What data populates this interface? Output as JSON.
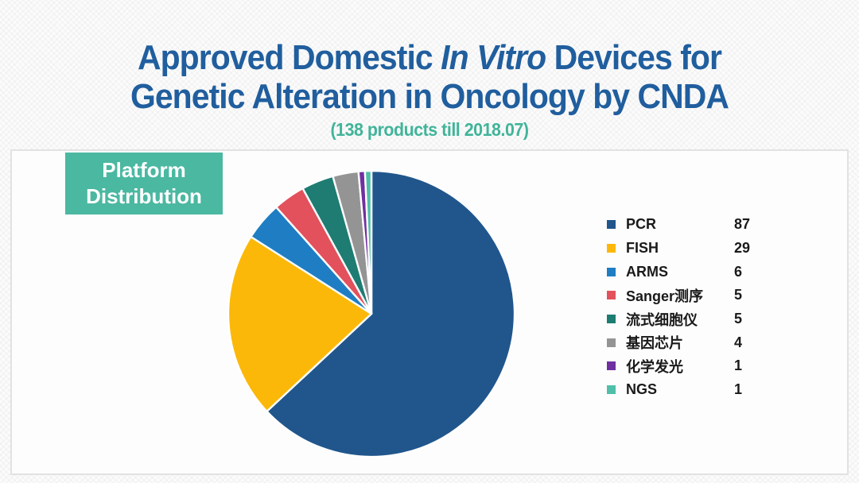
{
  "slide": {
    "title": {
      "line1_prefix": "Approved Domestic ",
      "line1_italic": "In Vitro",
      "line1_suffix": " Devices for",
      "line2": "Genetic Alteration in Oncology by CNDA",
      "subtitle": "(138 products till 2018.07)"
    },
    "chart_label": "Platform\nDistribution",
    "colors": {
      "title_text": "#205E9E",
      "subtitle_text": "#41B49A",
      "chart_label_bg": "#4BB8A1",
      "panel_border": "#E2E2E2"
    }
  },
  "chart_data": {
    "type": "pie",
    "title": "Platform Distribution",
    "subtitle": "(138 products till 2018.07)",
    "total": 138,
    "start_angle": "top",
    "direction": "clockwise",
    "legend_position": "right",
    "grid": false,
    "categories": [
      "PCR",
      "FISH",
      "ARMS",
      "Sanger测序",
      "流式细胞仪",
      "基因芯片",
      "化学发光",
      "NGS"
    ],
    "values": [
      87,
      29,
      6,
      5,
      5,
      4,
      1,
      1
    ],
    "colors": [
      "#20568C",
      "#FCB808",
      "#1F7EC3",
      "#E2515C",
      "#1E7C72",
      "#949494",
      "#7030A0",
      "#4FBFA9"
    ]
  }
}
